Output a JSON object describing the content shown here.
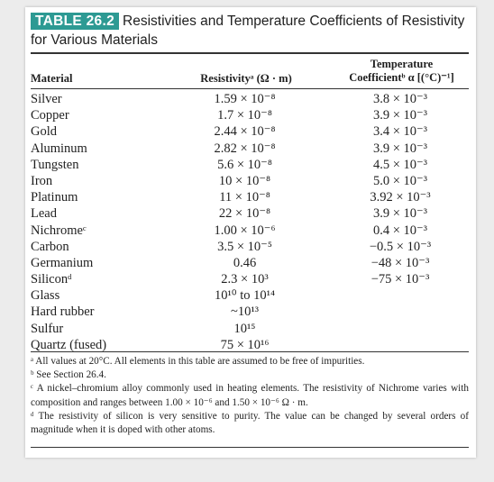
{
  "title": {
    "badge": "TABLE 26.2",
    "line1": "Resistivities and Temperature Coefficients of Resistivity",
    "line2": "for Various Materials"
  },
  "headers": {
    "material": "Material",
    "resistivity": "Resistivityᵃ (Ω · m)",
    "coef_line1": "Temperature",
    "coef_line2": "Coefficientᵇ α [(°C)⁻¹]"
  },
  "rows": [
    {
      "material": "Silver",
      "resistivity": "1.59 × 10⁻⁸",
      "coef": "3.8 × 10⁻³"
    },
    {
      "material": "Copper",
      "resistivity": "1.7 × 10⁻⁸",
      "coef": "3.9 × 10⁻³"
    },
    {
      "material": "Gold",
      "resistivity": "2.44 × 10⁻⁸",
      "coef": "3.4 × 10⁻³"
    },
    {
      "material": "Aluminum",
      "resistivity": "2.82 × 10⁻⁸",
      "coef": "3.9 × 10⁻³"
    },
    {
      "material": "Tungsten",
      "resistivity": "5.6 × 10⁻⁸",
      "coef": "4.5 × 10⁻³"
    },
    {
      "material": "Iron",
      "resistivity": "10 × 10⁻⁸",
      "coef": "5.0 × 10⁻³"
    },
    {
      "material": "Platinum",
      "resistivity": "11 × 10⁻⁸",
      "coef": "3.92 × 10⁻³"
    },
    {
      "material": "Lead",
      "resistivity": "22 × 10⁻⁸",
      "coef": "3.9 × 10⁻³"
    },
    {
      "material": "Nichromeᶜ",
      "resistivity": "1.00 × 10⁻⁶",
      "coef": "0.4 × 10⁻³"
    },
    {
      "material": "Carbon",
      "resistivity": "3.5 × 10⁻⁵",
      "coef": "−0.5 × 10⁻³"
    },
    {
      "material": "Germanium",
      "resistivity": "0.46",
      "coef": "−48 × 10⁻³"
    },
    {
      "material": "Siliconᵈ",
      "resistivity": "2.3 × 10³",
      "coef": "−75 × 10⁻³"
    },
    {
      "material": "Glass",
      "resistivity": "10¹⁰ to 10¹⁴",
      "coef": ""
    },
    {
      "material": "Hard rubber",
      "resistivity": "~10¹³",
      "coef": ""
    },
    {
      "material": "Sulfur",
      "resistivity": "10¹⁵",
      "coef": ""
    },
    {
      "material": "Quartz (fused)",
      "resistivity": "75 × 10¹⁶",
      "coef": ""
    }
  ],
  "footnotes": [
    "ᵃ All values at 20°C. All elements in this table are assumed to be free of impurities.",
    "ᵇ See Section 26.4.",
    "ᶜ A nickel–chromium alloy commonly used in heating elements. The resistivity of Nichrome varies with composition and ranges between 1.00 × 10⁻⁶ and 1.50 × 10⁻⁶ Ω · m.",
    "ᵈ The resistivity of silicon is very sensitive to purity. The value can be changed by several orders of magnitude when it is doped with other atoms."
  ]
}
